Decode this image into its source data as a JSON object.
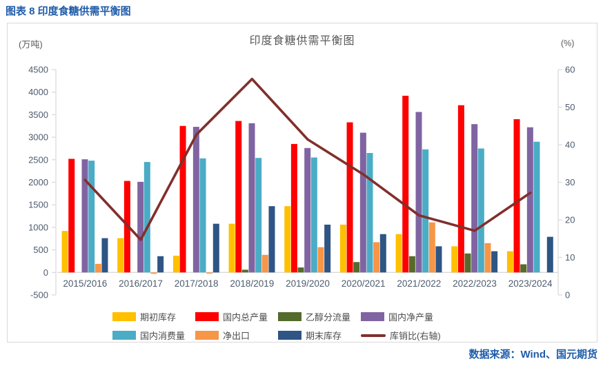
{
  "header": {
    "title": "图表 8 印度食糖供需平衡图"
  },
  "chart": {
    "title": "印度食糖供需平衡图",
    "unit_left": "(万吨)",
    "unit_right": "(%)"
  },
  "chart_data": {
    "type": "bar",
    "combo": "bar+line",
    "title": "印度食糖供需平衡图",
    "categories": [
      "2015/2016",
      "2016/2017",
      "2017/2018",
      "2018/2019",
      "2019/2020",
      "2020/2021",
      "2021/2022",
      "2022/2023",
      "2023/2024"
    ],
    "series": [
      {
        "name": "期初库存",
        "type": "bar",
        "axis": "left",
        "color": "#FFC000",
        "values": [
          920,
          760,
          370,
          1080,
          1470,
          1060,
          850,
          580,
          470
        ]
      },
      {
        "name": "国内总产量",
        "type": "bar",
        "axis": "left",
        "color": "#FF0000",
        "values": [
          2520,
          2030,
          3250,
          3360,
          2850,
          3330,
          3920,
          3710,
          3400
        ]
      },
      {
        "name": "乙醇分流量",
        "type": "bar",
        "axis": "left",
        "color": "#546B2B",
        "values": [
          0,
          0,
          0,
          60,
          110,
          230,
          360,
          420,
          180
        ]
      },
      {
        "name": "国内净产量",
        "type": "bar",
        "axis": "left",
        "color": "#8064A2",
        "values": [
          2510,
          2010,
          3230,
          3310,
          2760,
          3100,
          3560,
          3290,
          3220
        ]
      },
      {
        "name": "国内消费量",
        "type": "bar",
        "axis": "left",
        "color": "#4BACC6",
        "values": [
          2480,
          2450,
          2530,
          2540,
          2550,
          2650,
          2730,
          2750,
          2900
        ]
      },
      {
        "name": "净出口",
        "type": "bar",
        "axis": "left",
        "color": "#F79646",
        "values": [
          190,
          -30,
          -25,
          390,
          560,
          670,
          1110,
          650,
          0
        ]
      },
      {
        "name": "期末库存",
        "type": "bar",
        "axis": "left",
        "color": "#2E5584",
        "values": [
          760,
          360,
          1080,
          1470,
          1060,
          850,
          580,
          470,
          790
        ]
      },
      {
        "name": "库销比(右轴)",
        "type": "line",
        "axis": "right",
        "color": "#812F2C",
        "values": [
          30.6,
          14.7,
          42.7,
          57.5,
          41.4,
          32.1,
          21.2,
          17.1,
          27.2
        ]
      }
    ],
    "left_axis": {
      "unit": "(万吨)",
      "min": -500,
      "max": 4500,
      "tick_step": 500,
      "ticks": [
        4500,
        4000,
        3500,
        3000,
        2500,
        2000,
        1500,
        1000,
        500,
        0,
        -500
      ]
    },
    "right_axis": {
      "unit": "(%)",
      "min": 0,
      "max": 60,
      "tick_step": 10,
      "ticks": [
        60,
        50,
        40,
        30,
        20,
        10,
        0
      ]
    },
    "legend_position": "bottom",
    "grid": false,
    "axis_line_color": "#D9D9D9",
    "axis_label_color": "#4D5B6E"
  },
  "footer": {
    "source": "数据来源：Wind、国元期货"
  }
}
